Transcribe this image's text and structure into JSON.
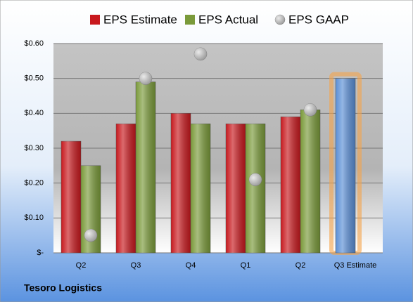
{
  "chart_data": {
    "type": "bar",
    "categories": [
      "Q2",
      "Q3",
      "Q4",
      "Q1",
      "Q2",
      "Q3 Estimate"
    ],
    "series": [
      {
        "name": "EPS Estimate",
        "color": "#c8191e",
        "values": [
          0.32,
          0.37,
          0.4,
          0.37,
          0.39,
          0.5
        ]
      },
      {
        "name": "EPS Actual",
        "color": "#7a9a3a",
        "values": [
          0.25,
          0.49,
          0.37,
          0.37,
          0.41,
          null
        ]
      },
      {
        "name": "EPS GAAP",
        "color": "#9a9a9a",
        "marker": "circle",
        "values": [
          0.05,
          0.5,
          0.57,
          0.21,
          0.41,
          null
        ]
      }
    ],
    "highlight": {
      "index": 5,
      "color": "#5b8fd6",
      "glow": "#f5a34a"
    },
    "ylim": [
      0,
      0.6
    ],
    "yticks": [
      {
        "value": 0,
        "label": "$-"
      },
      {
        "value": 0.1,
        "label": "$0.10"
      },
      {
        "value": 0.2,
        "label": "$0.20"
      },
      {
        "value": 0.3,
        "label": "$0.30"
      },
      {
        "value": 0.4,
        "label": "$0.40"
      },
      {
        "value": 0.5,
        "label": "$0.50"
      },
      {
        "value": 0.6,
        "label": "$0.60"
      }
    ],
    "grid": true,
    "legend": "top",
    "footer": "Tesoro Logistics"
  }
}
